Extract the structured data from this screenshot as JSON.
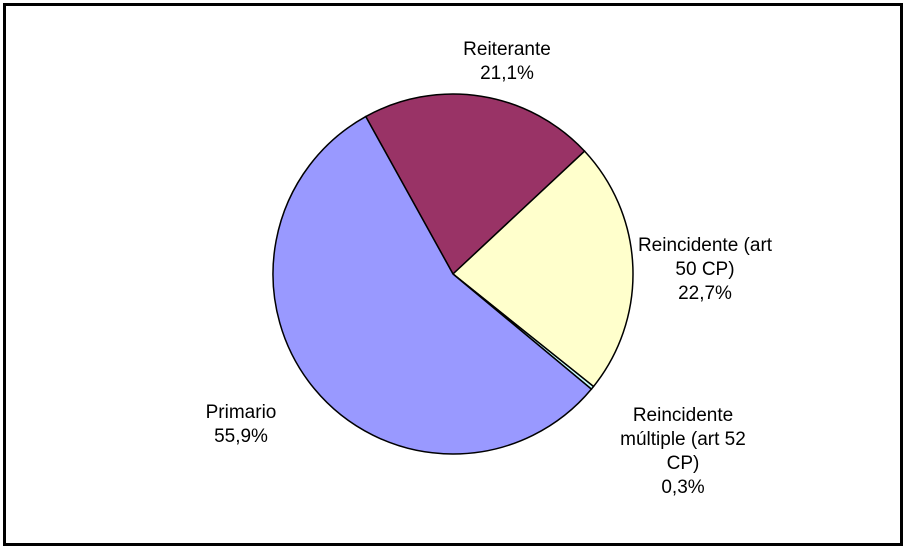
{
  "chart_data": {
    "type": "pie",
    "categories": [
      "Reiterante",
      "Reincidente (art 50 CP)",
      "Reincidente múltiple (art 52 CP)",
      "Primario"
    ],
    "values": [
      21.1,
      22.7,
      0.3,
      55.9
    ],
    "value_labels": [
      "21,1%",
      "22,7%",
      "0,3%",
      "55,9%"
    ],
    "colors": [
      "#993366",
      "#ffffcc",
      "#ccffff",
      "#9999ff"
    ]
  }
}
